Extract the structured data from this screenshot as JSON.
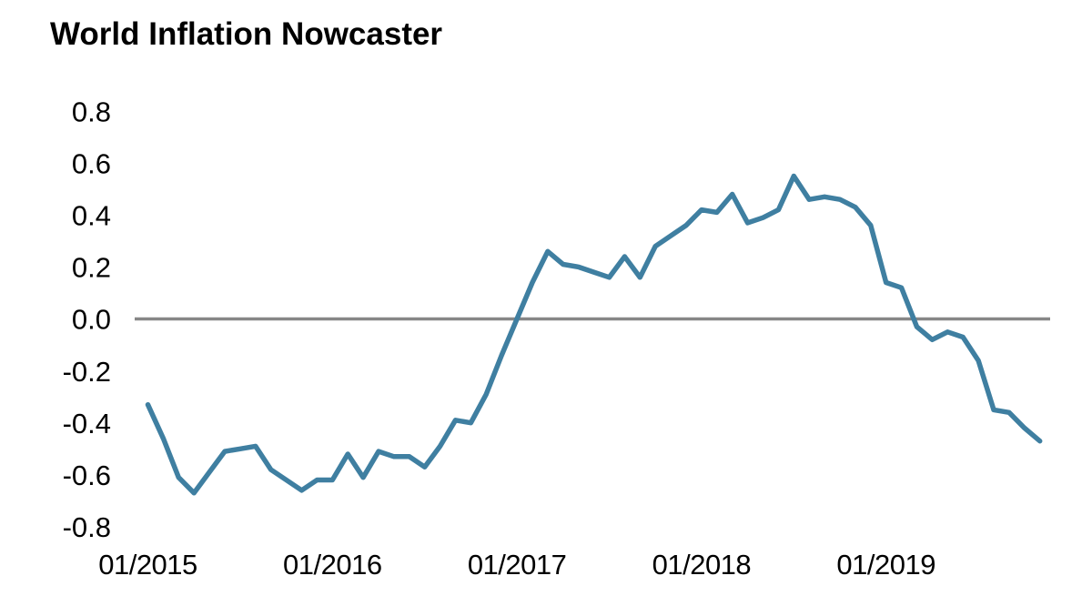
{
  "page": {
    "background_color": "#ffffff"
  },
  "chart_data": {
    "type": "line",
    "title": "World Inflation Nowcaster",
    "xlabel": "",
    "ylabel": "",
    "ylim": [
      -0.8,
      0.8
    ],
    "grid": false,
    "legend": "none",
    "zero_line": {
      "show": true,
      "color": "#878787"
    },
    "y_tick_labels": [
      "0.8",
      "0.6",
      "0.4",
      "0.2",
      "0.0",
      "-0.2",
      "-0.4",
      "-0.6",
      "-0.8"
    ],
    "x_tick_labels": [
      "01/2015",
      "01/2016",
      "01/2017",
      "01/2018",
      "01/2019"
    ],
    "frequency": "monthly",
    "x": [
      "01/2015",
      "02/2015",
      "03/2015",
      "04/2015",
      "05/2015",
      "06/2015",
      "07/2015",
      "08/2015",
      "09/2015",
      "10/2015",
      "11/2015",
      "12/2015",
      "01/2016",
      "02/2016",
      "03/2016",
      "04/2016",
      "05/2016",
      "06/2016",
      "07/2016",
      "08/2016",
      "09/2016",
      "10/2016",
      "11/2016",
      "12/2016",
      "01/2017",
      "02/2017",
      "03/2017",
      "04/2017",
      "05/2017",
      "06/2017",
      "07/2017",
      "08/2017",
      "09/2017",
      "10/2017",
      "11/2017",
      "12/2017",
      "01/2018",
      "02/2018",
      "03/2018",
      "04/2018",
      "05/2018",
      "06/2018",
      "07/2018",
      "08/2018",
      "09/2018",
      "10/2018",
      "11/2018",
      "12/2018",
      "01/2019",
      "02/2019",
      "03/2019",
      "04/2019",
      "05/2019",
      "06/2019",
      "07/2019",
      "08/2019",
      "09/2019",
      "10/2019",
      "11/2019"
    ],
    "series": [
      {
        "name": "World Inflation Nowcaster",
        "color": "#3f7fa1",
        "line_width": 5.5,
        "values": [
          -0.33,
          -0.46,
          -0.61,
          -0.67,
          -0.59,
          -0.51,
          -0.5,
          -0.49,
          -0.58,
          -0.62,
          -0.66,
          -0.62,
          -0.62,
          -0.52,
          -0.61,
          -0.51,
          -0.53,
          -0.53,
          -0.57,
          -0.49,
          -0.39,
          -0.4,
          -0.29,
          -0.14,
          0.0,
          0.14,
          0.26,
          0.21,
          0.2,
          0.18,
          0.16,
          0.24,
          0.16,
          0.28,
          0.32,
          0.36,
          0.42,
          0.41,
          0.48,
          0.37,
          0.39,
          0.42,
          0.55,
          0.46,
          0.47,
          0.46,
          0.43,
          0.36,
          0.14,
          0.12,
          -0.03,
          -0.08,
          -0.05,
          -0.07,
          -0.16,
          -0.35,
          -0.36,
          -0.42,
          -0.47
        ]
      }
    ]
  }
}
